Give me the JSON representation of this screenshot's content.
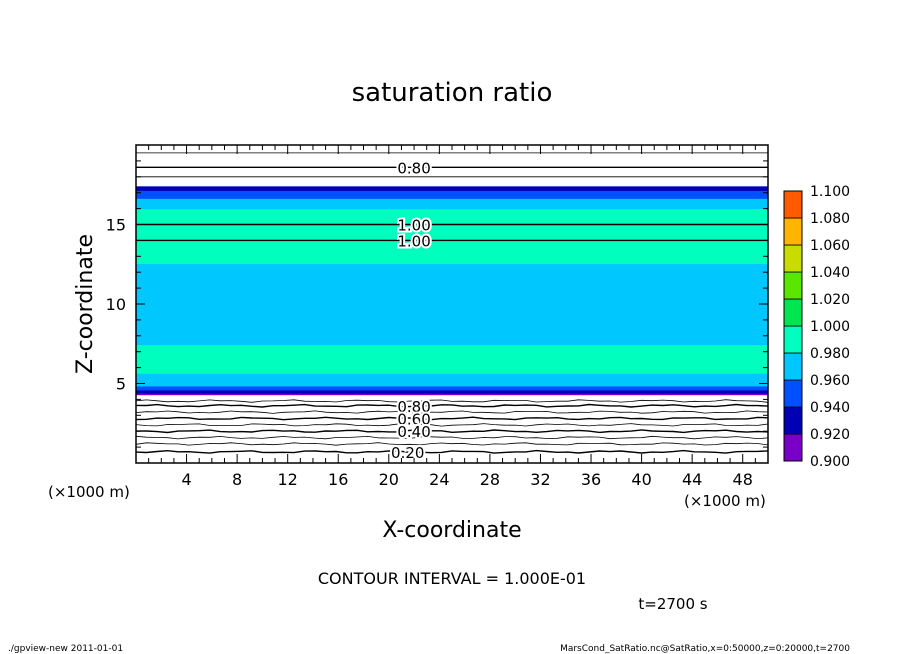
{
  "chart_data": {
    "type": "heatmap",
    "title": "saturation ratio",
    "xlabel": "X-coordinate",
    "ylabel": "Z-coordinate",
    "x_unit": "(×1000 m)",
    "y_unit": "(×1000 m)",
    "xlim": [
      0,
      50
    ],
    "ylim": [
      0,
      20
    ],
    "x_ticks": [
      4,
      8,
      12,
      16,
      20,
      24,
      28,
      32,
      36,
      40,
      44,
      48
    ],
    "y_ticks": [
      5,
      10,
      15
    ],
    "contour_interval_text": "CONTOUR INTERVAL = 1.000E-01",
    "time_text": "t=2700 s",
    "footer_left": "./gpview-new  2011-01-01",
    "footer_right": "MarsCond_SatRatio.nc@SatRatio,x=0:50000,z=0:20000,t=2700",
    "colorbar": {
      "levels": [
        0.9,
        0.92,
        0.94,
        0.96,
        0.98,
        1.0,
        1.02,
        1.04,
        1.06,
        1.08,
        1.1
      ],
      "labels": [
        "0.900",
        "0.920",
        "0.940",
        "0.960",
        "0.980",
        "1.000",
        "1.020",
        "1.040",
        "1.060",
        "1.080",
        "1.100"
      ],
      "colors": [
        "#7a00c8",
        "#0000b4",
        "#0050ff",
        "#00c8ff",
        "#00ffbe",
        "#00e650",
        "#5ae600",
        "#c8dc00",
        "#ffb400",
        "#ff5a00",
        "#ff9696"
      ]
    },
    "filled_band": {
      "z_range": [
        4.3,
        17.4
      ],
      "z_profile": [
        4.3,
        4.6,
        5.0,
        6.0,
        8.0,
        10.0,
        12.0,
        14.0,
        16.0,
        17.0,
        17.4
      ],
      "sat_profile": [
        0.91,
        0.94,
        0.97,
        0.985,
        0.978,
        0.972,
        0.978,
        0.985,
        0.98,
        0.95,
        0.92
      ]
    },
    "contour_lines": [
      {
        "level_label": "0.80",
        "z": 18.6
      },
      {
        "level_label": "1.00",
        "z": 15.0
      },
      {
        "level_label": "1.00",
        "z": 14.0
      },
      {
        "level_label": "0.80",
        "z": 3.6
      },
      {
        "level_label": "0.60",
        "z": 2.8
      },
      {
        "level_label": "0.40",
        "z": 2.0
      },
      {
        "level_label": "0.20",
        "z": 0.7
      }
    ],
    "extra_contours_z": [
      19.5,
      18.0,
      3.9,
      3.2,
      2.4,
      1.6,
      1.2
    ]
  }
}
